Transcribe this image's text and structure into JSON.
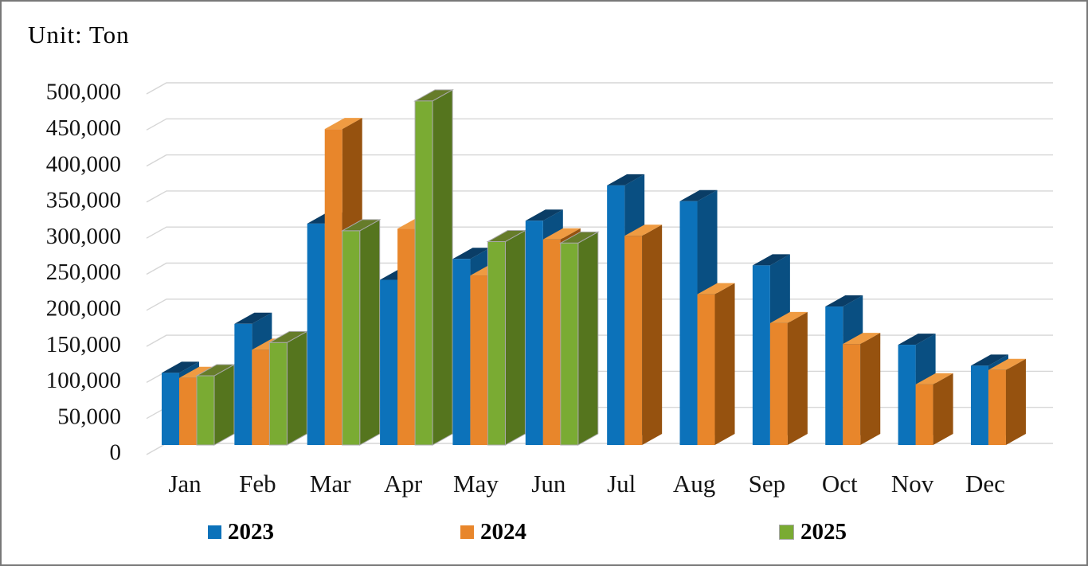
{
  "title": "Unit: Ton",
  "chart_data": {
    "type": "bar",
    "style": "3d-clustered-column",
    "title": "Unit: Ton",
    "xlabel": "",
    "ylabel": "Ton",
    "ylim": [
      0,
      500000
    ],
    "ytick_step": 50000,
    "ytick_labels": [
      "0",
      "50,000",
      "100,000",
      "150,000",
      "200,000",
      "250,000",
      "300,000",
      "350,000",
      "400,000",
      "450,000",
      "500,000"
    ],
    "grid": true,
    "legend_position": "bottom",
    "categories": [
      "Jan",
      "Feb",
      "Mar",
      "Apr",
      "May",
      "Jun",
      "Jul",
      "Aug",
      "Sep",
      "Oct",
      "Nov",
      "Dec"
    ],
    "series": [
      {
        "name": "2023",
        "color": "#0C72BA",
        "top_color": "#0A3D66",
        "side_color": "#094F82",
        "border": null,
        "values": [
          100000,
          168000,
          307000,
          229000,
          258000,
          311000,
          360000,
          338000,
          249000,
          192000,
          139000,
          110000
        ]
      },
      {
        "name": "2024",
        "color": "#E8862B",
        "top_color": "#EF9B42",
        "side_color": "#96520F",
        "border": null,
        "values": [
          93000,
          132000,
          438000,
          300000,
          235000,
          285000,
          290000,
          209000,
          169000,
          140000,
          84000,
          104000
        ]
      },
      {
        "name": "2025",
        "color": "#7AAB33",
        "top_color": "#667C2A",
        "side_color": "#55751E",
        "border": "#A8A8A8",
        "values": [
          96000,
          142000,
          297000,
          477000,
          282000,
          280000,
          null,
          null,
          null,
          null,
          null,
          null
        ]
      }
    ],
    "gridline_color": "#D6D6D6"
  },
  "legend": {
    "items": [
      {
        "label": "2023"
      },
      {
        "label": "2024"
      },
      {
        "label": "2025"
      }
    ]
  }
}
